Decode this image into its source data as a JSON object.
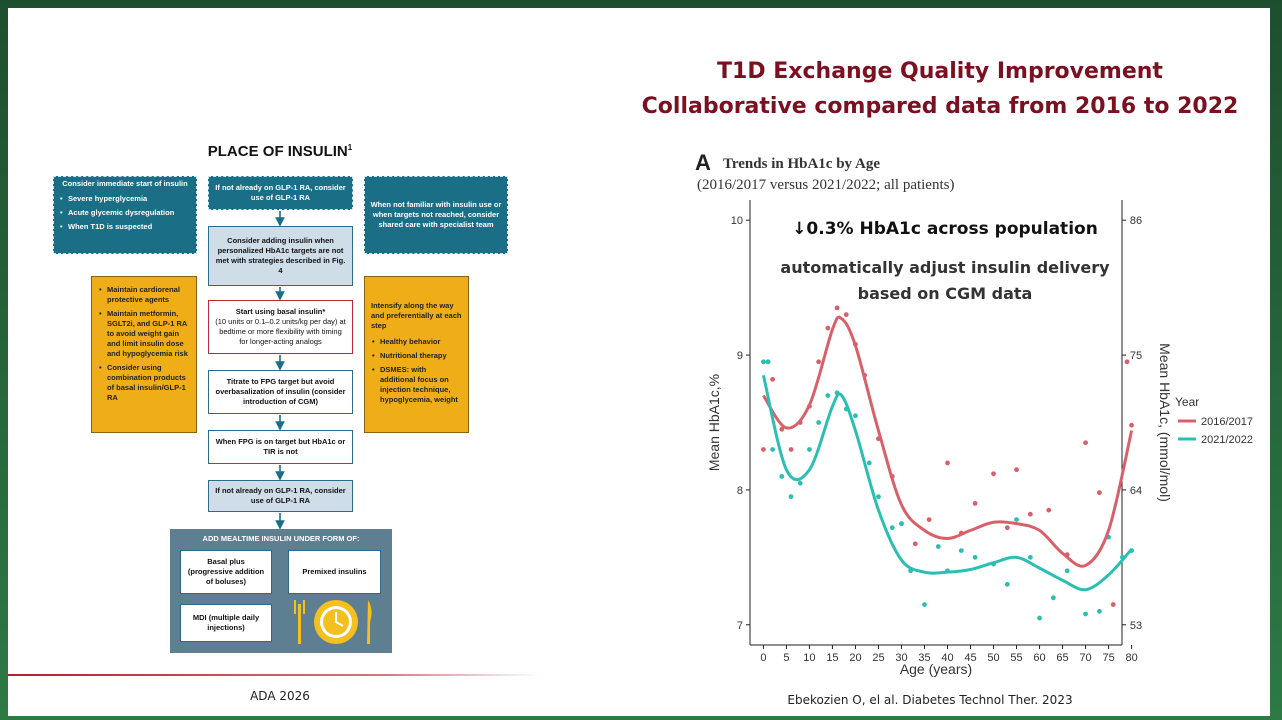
{
  "slide": {
    "title": "T1D Exchange Quality Improvement Collaborative compared data from 2016 to 2022",
    "left_source": "ADA 2026",
    "right_source": "Ebekozien O, el al. Diabetes Technol Ther. 2023"
  },
  "flowchart": {
    "title": "PLACE OF INSULIN",
    "title_ref": "1",
    "immediate": {
      "heading": "Consider immediate start of insulin",
      "items": [
        "Severe hyperglycemia",
        "Acute glycemic dysregulation",
        "When T1D is suspected"
      ]
    },
    "glp1_top": "If not already on GLP-1 RA, consider use of GLP-1 RA",
    "specialist": "When not familiar with insulin use or when targets not reached, consider shared care with specialist team",
    "consider": "Consider adding insulin when personalized HbA1c targets are not met with strategies described in Fig. 4",
    "basal": {
      "heading": "Start using basal insulin*",
      "detail": "(10 units or 0.1–0.2 units/kg per day) at bedtime or more flexibility with timing for longer-acting analogs"
    },
    "titrate": "Titrate to FPG target but avoid overbasalization of insulin (consider introduction of CGM)",
    "fpg": "When FPG is on target but HbA1c or TIR is not",
    "glp1_bottom": "If not already on GLP-1 RA, consider use of GLP-1 RA",
    "maintain": [
      "Maintain cardiorenal protective agents",
      "Maintain metformin, SGLT2i, and GLP-1 RA to avoid weight gain and limit insulin dose and hypoglycemia risk",
      "Consider using combination products of basal insulin/GLP-1 RA"
    ],
    "intensify": {
      "heading": "Intensify along the way and preferentially at each step",
      "items": [
        "Healthy behavior",
        "Nutritional therapy",
        "DSMES: with additional focus on injection technique, hypoglycemia, weight"
      ]
    },
    "mealtime": {
      "heading": "ADD MEALTIME INSULIN UNDER FORM OF:",
      "basal_plus": "Basal plus (progressive addition of boluses)",
      "premixed": "Premixed insulins",
      "mdi": "MDI (multiple daily injections)"
    }
  },
  "chart_data": {
    "type": "line",
    "panel_label": "A",
    "title": "Trends in HbA1c by Age",
    "subtitle": "(2016/2017 versus 2021/2022; all patients)",
    "annotations": [
      "↓0.3% HbA1c across population",
      "automatically adjust insulin delivery based on CGM data"
    ],
    "x_label": "Age (years)",
    "y_label": "Mean HbA1c,%",
    "y2_label": "Mean HbA1c, (mmol/mol)",
    "legend_title": "Year",
    "legend": "right",
    "x": [
      0,
      5,
      10,
      15,
      17,
      20,
      25,
      30,
      35,
      40,
      45,
      50,
      55,
      60,
      65,
      70,
      75,
      80
    ],
    "xlim": [
      -4,
      84
    ],
    "xticks": [
      0,
      5,
      10,
      15,
      20,
      25,
      30,
      35,
      40,
      45,
      50,
      55,
      60,
      65,
      70,
      75,
      80
    ],
    "ylim": [
      6.85,
      10.15
    ],
    "yticks": [
      7,
      8,
      9,
      10
    ],
    "y2lim": [
      51.35,
      87.65
    ],
    "y2ticks": [
      53,
      64,
      75,
      86
    ],
    "series": [
      {
        "name": "2016/2017",
        "color": "#d9606a",
        "values": [
          8.7,
          8.46,
          8.63,
          9.19,
          9.27,
          9.07,
          8.44,
          7.89,
          7.7,
          7.64,
          7.7,
          7.76,
          7.75,
          7.7,
          7.53,
          7.44,
          7.7,
          8.44
        ]
      },
      {
        "name": "2021/2022",
        "color": "#2bbfb3",
        "values": [
          8.85,
          8.15,
          8.15,
          8.62,
          8.7,
          8.44,
          7.85,
          7.48,
          7.39,
          7.39,
          7.41,
          7.46,
          7.5,
          7.42,
          7.33,
          7.26,
          7.37,
          7.56
        ]
      }
    ],
    "scatter": [
      {
        "x": [
          0,
          1,
          2,
          4,
          6,
          8,
          10,
          12,
          14,
          16,
          18,
          20,
          22,
          25,
          28,
          30,
          33,
          36,
          40,
          43,
          46,
          50,
          53,
          55,
          58,
          62,
          66,
          70,
          73,
          76,
          79,
          80
        ],
        "values": [
          8.3,
          8.95,
          8.82,
          8.45,
          8.3,
          8.5,
          8.62,
          8.95,
          9.2,
          9.35,
          9.3,
          9.08,
          8.85,
          8.38,
          8.1,
          7.75,
          7.6,
          7.78,
          8.2,
          7.68,
          7.9,
          8.12,
          7.72,
          8.15,
          7.82,
          7.85,
          7.52,
          8.35,
          7.98,
          7.15,
          8.95,
          8.48
        ]
      },
      {
        "x": [
          0,
          1,
          2,
          4,
          6,
          8,
          10,
          12,
          14,
          16,
          18,
          20,
          23,
          25,
          28,
          30,
          32,
          35,
          38,
          40,
          43,
          46,
          50,
          53,
          55,
          58,
          60,
          63,
          66,
          70,
          73,
          75,
          78,
          80
        ],
        "values": [
          8.95,
          8.95,
          8.3,
          8.1,
          7.95,
          8.05,
          8.3,
          8.5,
          8.7,
          8.72,
          8.6,
          8.55,
          8.2,
          7.95,
          7.72,
          7.75,
          7.4,
          7.15,
          7.58,
          7.4,
          7.55,
          7.5,
          7.45,
          7.3,
          7.78,
          7.5,
          7.05,
          7.2,
          7.4,
          7.08,
          7.1,
          7.65,
          7.5,
          7.55
        ]
      }
    ]
  }
}
